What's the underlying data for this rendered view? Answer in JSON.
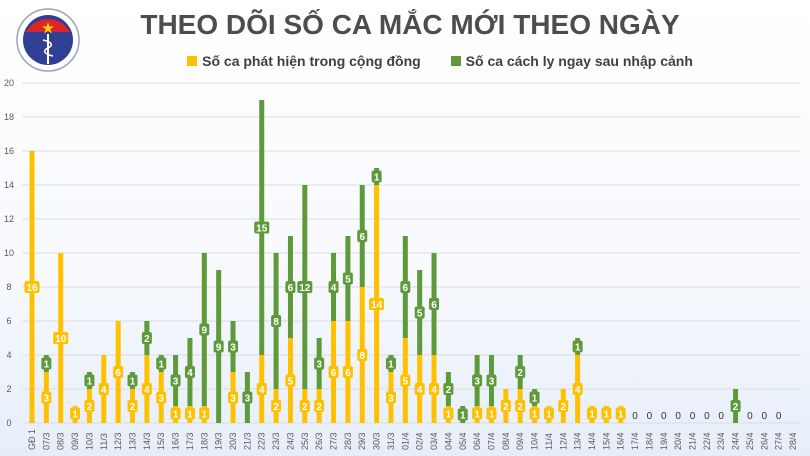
{
  "logo": {
    "text_top": "BỘ Y TẾ",
    "text_bottom": "MINISTRY OF HEALTH"
  },
  "colors": {
    "community": "#ffc000",
    "quarantine": "#5f9a3a",
    "grid": "#d9dde4",
    "axis_text": "#595959"
  },
  "chart_data": {
    "type": "bar",
    "stacked": true,
    "title": "THEO DÕI SỐ CA MẮC MỚI THEO NGÀY",
    "legend_placement": "top",
    "grid": true,
    "ylim": [
      0,
      20
    ],
    "yticks": [
      0,
      2,
      4,
      6,
      8,
      10,
      12,
      14,
      16,
      18,
      20
    ],
    "categories": [
      "GĐ 1",
      "07/3",
      "08/3",
      "09/3",
      "10/3",
      "11/3",
      "12/3",
      "13/3",
      "14/3",
      "15/3",
      "16/3",
      "17/3",
      "18/3",
      "19/3",
      "20/3",
      "21/3",
      "22/3",
      "23/3",
      "24/3",
      "25/3",
      "26/3",
      "27/3",
      "28/3",
      "29/3",
      "30/3",
      "31/3",
      "01/4",
      "02/4",
      "03/4",
      "04/4",
      "05/4",
      "06/4",
      "07/4",
      "08/4",
      "09/4",
      "10/4",
      "11/4",
      "12/4",
      "13/4",
      "14/4",
      "15/4",
      "16/4",
      "17/4",
      "18/4",
      "19/4",
      "20/4",
      "21/4",
      "22/4",
      "23/4",
      "24/4",
      "25/4",
      "26/4",
      "27/4",
      "28/4"
    ],
    "series": [
      {
        "name": "Số ca phát hiện trong cộng đồng",
        "values": [
          16,
          3,
          10,
          1,
          2,
          4,
          6,
          2,
          4,
          3,
          1,
          1,
          1,
          0,
          3,
          0,
          4,
          2,
          5,
          2,
          2,
          6,
          6,
          8,
          14,
          3,
          5,
          4,
          4,
          1,
          0,
          1,
          1,
          2,
          2,
          1,
          1,
          2,
          4,
          1,
          1,
          1,
          0,
          0,
          0,
          0,
          0,
          0,
          0,
          0,
          0,
          0,
          0,
          null
        ]
      },
      {
        "name": "Số ca cách ly ngay sau nhập cảnh",
        "values": [
          0,
          1,
          0,
          0,
          1,
          0,
          0,
          1,
          2,
          1,
          3,
          4,
          9,
          9,
          3,
          3,
          15,
          8,
          6,
          12,
          3,
          4,
          5,
          6,
          1,
          1,
          6,
          5,
          6,
          2,
          1,
          3,
          3,
          0,
          2,
          1,
          0,
          0,
          1,
          0,
          0,
          0,
          0,
          0,
          0,
          0,
          0,
          0,
          0,
          2,
          0,
          0,
          0,
          null
        ]
      }
    ]
  }
}
